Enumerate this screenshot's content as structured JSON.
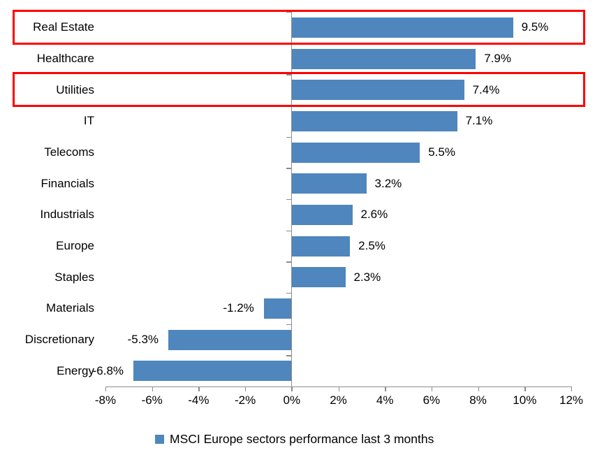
{
  "chart_data": {
    "type": "bar",
    "orientation": "horizontal",
    "title": "",
    "categories": [
      "Real Estate",
      "Healthcare",
      "Utilities",
      "IT",
      "Telecoms",
      "Financials",
      "Industrials",
      "Europe",
      "Staples",
      "Materials",
      "Discretionary",
      "Energy"
    ],
    "values": [
      9.5,
      7.9,
      7.4,
      7.1,
      5.5,
      3.2,
      2.6,
      2.5,
      2.3,
      -1.2,
      -5.3,
      -6.8
    ],
    "value_labels": [
      "9.5%",
      "7.9%",
      "7.4%",
      "7.1%",
      "5.5%",
      "3.2%",
      "2.6%",
      "2.5%",
      "2.3%",
      "-1.2%",
      "-5.3%",
      "-6.8%"
    ],
    "x_axis": {
      "min": -8,
      "max": 12,
      "tick_step": 2,
      "tick_labels": [
        "-8%",
        "-6%",
        "-4%",
        "-2%",
        "0%",
        "2%",
        "4%",
        "6%",
        "8%",
        "10%",
        "12%"
      ]
    },
    "grid": false,
    "legend_position": "bottom",
    "legend": [
      {
        "label": "MSCI Europe sectors performance last 3 months",
        "color": "#4F86BD"
      }
    ],
    "highlighted_categories": [
      "Real Estate",
      "Utilities"
    ],
    "colors": {
      "bar": "#4F86BD",
      "axis": "#8C8C8C",
      "highlight_border": "#FF0000",
      "text": "#000000",
      "background": "#FFFFFF"
    }
  }
}
